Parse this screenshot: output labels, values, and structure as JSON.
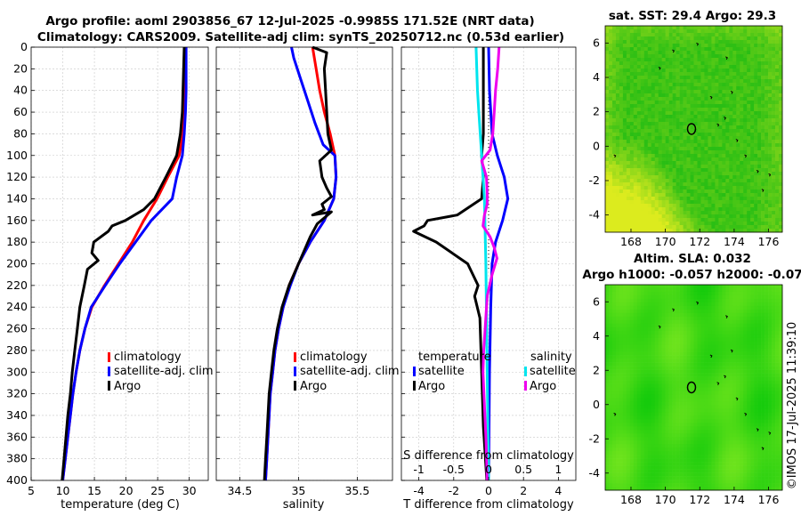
{
  "header": {
    "title1": "Argo profile: aoml 2903856_67 12-Jul-2025 -0.9985S 171.52E (NRT data)",
    "title2": "Climatology: CARS2009. Satellite-adj clim: synTS_20250712.nc (0.53d earlier)"
  },
  "colors": {
    "climatology": "#ff0000",
    "satellite": "#0000ff",
    "argo": "#000000",
    "sat_diff_s": "#00e5ee",
    "argo_diff_s": "#ee00ee",
    "map_land": "#000000"
  },
  "chart_data": [
    {
      "type": "line",
      "name": "temperature",
      "xlabel": "temperature (deg C)",
      "xlim": [
        5,
        33
      ],
      "xticks": [
        5,
        10,
        15,
        20,
        25,
        30
      ],
      "ylim": [
        0,
        400
      ],
      "yticks": [
        0,
        20,
        40,
        60,
        80,
        100,
        120,
        140,
        160,
        180,
        200,
        220,
        240,
        260,
        280,
        300,
        320,
        340,
        360,
        380,
        400
      ],
      "legend": [
        "climatology",
        "satellite-adj. clim",
        "Argo"
      ],
      "series": [
        {
          "name": "climatology",
          "color": "#ff0000",
          "points": [
            [
              29.5,
              0
            ],
            [
              29.4,
              20
            ],
            [
              29.3,
              40
            ],
            [
              29.2,
              60
            ],
            [
              29.0,
              80
            ],
            [
              28.4,
              100
            ],
            [
              26.6,
              120
            ],
            [
              24.9,
              140
            ],
            [
              22.8,
              160
            ],
            [
              21.0,
              180
            ],
            [
              18.8,
              200
            ],
            [
              16.6,
              220
            ],
            [
              14.6,
              240
            ],
            [
              13.5,
              260
            ],
            [
              12.7,
              280
            ],
            [
              12.1,
              300
            ],
            [
              11.6,
              320
            ],
            [
              11.2,
              340
            ],
            [
              10.8,
              360
            ],
            [
              10.4,
              380
            ],
            [
              10.0,
              400
            ]
          ]
        },
        {
          "name": "satellite-adj. clim",
          "color": "#0000ff",
          "points": [
            [
              29.5,
              0
            ],
            [
              29.5,
              20
            ],
            [
              29.5,
              40
            ],
            [
              29.4,
              60
            ],
            [
              29.2,
              80
            ],
            [
              28.9,
              100
            ],
            [
              28.0,
              120
            ],
            [
              27.3,
              140
            ],
            [
              24.0,
              160
            ],
            [
              21.5,
              180
            ],
            [
              19.0,
              200
            ],
            [
              16.7,
              220
            ],
            [
              14.5,
              240
            ],
            [
              13.5,
              260
            ],
            [
              12.7,
              280
            ],
            [
              12.1,
              300
            ],
            [
              11.6,
              320
            ],
            [
              11.2,
              340
            ],
            [
              10.8,
              360
            ],
            [
              10.4,
              380
            ],
            [
              10.0,
              400
            ]
          ]
        },
        {
          "name": "Argo",
          "color": "#000000",
          "points": [
            [
              29.2,
              0
            ],
            [
              29.1,
              20
            ],
            [
              29.0,
              40
            ],
            [
              28.9,
              60
            ],
            [
              28.6,
              80
            ],
            [
              28.0,
              100
            ],
            [
              26.3,
              120
            ],
            [
              24.5,
              140
            ],
            [
              22.8,
              150
            ],
            [
              19.9,
              160
            ],
            [
              17.8,
              165
            ],
            [
              17.2,
              170
            ],
            [
              14.9,
              180
            ],
            [
              14.6,
              190
            ],
            [
              15.6,
              197
            ],
            [
              13.9,
              205
            ],
            [
              13.4,
              220
            ],
            [
              12.7,
              240
            ],
            [
              12.3,
              260
            ],
            [
              11.9,
              280
            ],
            [
              11.5,
              300
            ],
            [
              11.2,
              320
            ],
            [
              10.8,
              340
            ],
            [
              10.5,
              360
            ],
            [
              10.2,
              380
            ],
            [
              9.9,
              400
            ]
          ]
        }
      ]
    },
    {
      "type": "line",
      "name": "salinity",
      "xlabel": "salinity",
      "xlim": [
        34.3,
        35.8
      ],
      "xticks": [
        34.5,
        35,
        35.5
      ],
      "ylim": [
        0,
        400
      ],
      "legend": [
        "climatology",
        "satellite-adj. clim",
        "Argo"
      ],
      "series": [
        {
          "name": "climatology",
          "color": "#ff0000",
          "points": [
            [
              35.12,
              0
            ],
            [
              35.15,
              20
            ],
            [
              35.18,
              40
            ],
            [
              35.22,
              60
            ],
            [
              35.27,
              80
            ],
            [
              35.31,
              100
            ],
            [
              35.32,
              120
            ],
            [
              35.3,
              140
            ],
            [
              35.22,
              160
            ],
            [
              35.1,
              180
            ],
            [
              35.0,
              200
            ],
            [
              34.92,
              220
            ],
            [
              34.87,
              240
            ],
            [
              34.83,
              260
            ],
            [
              34.8,
              280
            ],
            [
              34.78,
              300
            ],
            [
              34.76,
              320
            ],
            [
              34.75,
              340
            ],
            [
              34.74,
              360
            ],
            [
              34.73,
              380
            ],
            [
              34.72,
              400
            ]
          ]
        },
        {
          "name": "satellite-adj. clim",
          "color": "#0000ff",
          "points": [
            [
              34.94,
              0
            ],
            [
              34.96,
              10
            ],
            [
              35.02,
              30
            ],
            [
              35.08,
              50
            ],
            [
              35.14,
              70
            ],
            [
              35.21,
              90
            ],
            [
              35.31,
              100
            ],
            [
              35.32,
              120
            ],
            [
              35.3,
              140
            ],
            [
              35.22,
              160
            ],
            [
              35.1,
              180
            ],
            [
              35.0,
              200
            ],
            [
              34.93,
              220
            ],
            [
              34.87,
              240
            ],
            [
              34.83,
              260
            ],
            [
              34.8,
              280
            ],
            [
              34.78,
              300
            ],
            [
              34.76,
              320
            ],
            [
              34.75,
              340
            ],
            [
              34.74,
              360
            ],
            [
              34.73,
              380
            ],
            [
              34.72,
              400
            ]
          ]
        },
        {
          "name": "Argo",
          "color": "#000000",
          "points": [
            [
              35.12,
              0
            ],
            [
              35.24,
              5
            ],
            [
              35.22,
              20
            ],
            [
              35.23,
              40
            ],
            [
              35.24,
              60
            ],
            [
              35.25,
              80
            ],
            [
              35.28,
              95
            ],
            [
              35.18,
              105
            ],
            [
              35.2,
              120
            ],
            [
              35.24,
              130
            ],
            [
              35.28,
              138
            ],
            [
              35.2,
              145
            ],
            [
              35.22,
              150
            ],
            [
              35.12,
              155
            ],
            [
              35.28,
              152
            ],
            [
              35.16,
              163
            ],
            [
              35.1,
              175
            ],
            [
              35.04,
              190
            ],
            [
              34.98,
              205
            ],
            [
              34.92,
              220
            ],
            [
              34.86,
              240
            ],
            [
              34.82,
              260
            ],
            [
              34.79,
              280
            ],
            [
              34.77,
              300
            ],
            [
              34.75,
              320
            ],
            [
              34.74,
              340
            ],
            [
              34.73,
              360
            ],
            [
              34.72,
              380
            ],
            [
              34.71,
              400
            ]
          ]
        }
      ]
    },
    {
      "type": "line",
      "name": "difference",
      "xlabel": "T difference from climatology",
      "xlabel_top": "S difference from climatology",
      "xlim": [
        -5,
        5
      ],
      "xticks": [
        -4,
        -2,
        0,
        2,
        4
      ],
      "xlim_top": [
        -1.25,
        1.25
      ],
      "xticks_top": [
        -1,
        -0.5,
        0,
        0.5,
        1
      ],
      "ylim": [
        0,
        400
      ],
      "legend_headers": [
        "temperature",
        "salinity"
      ],
      "legend": [
        "satellite",
        "Argo",
        "satellite",
        "Argo"
      ],
      "series": [
        {
          "name": "T satellite",
          "axis": "T",
          "color": "#0000ff",
          "points": [
            [
              0,
              0
            ],
            [
              0.05,
              40
            ],
            [
              0.2,
              80
            ],
            [
              0.5,
              100
            ],
            [
              0.9,
              120
            ],
            [
              1.1,
              140
            ],
            [
              0.8,
              160
            ],
            [
              0.4,
              180
            ],
            [
              0.2,
              200
            ],
            [
              0.12,
              240
            ],
            [
              0.05,
              300
            ],
            [
              0,
              400
            ]
          ]
        },
        {
          "name": "T Argo",
          "axis": "T",
          "color": "#000000",
          "points": [
            [
              -0.3,
              0
            ],
            [
              -0.3,
              40
            ],
            [
              -0.3,
              80
            ],
            [
              -0.4,
              100
            ],
            [
              -0.3,
              120
            ],
            [
              -0.4,
              140
            ],
            [
              -1.8,
              155
            ],
            [
              -3.5,
              160
            ],
            [
              -3.7,
              165
            ],
            [
              -4.3,
              170
            ],
            [
              -3.0,
              180
            ],
            [
              -1.2,
              200
            ],
            [
              -0.6,
              220
            ],
            [
              -0.8,
              230
            ],
            [
              -0.5,
              250
            ],
            [
              -0.4,
              300
            ],
            [
              -0.3,
              350
            ],
            [
              -0.1,
              400
            ]
          ]
        },
        {
          "name": "S satellite",
          "axis": "S",
          "color": "#00e5ee",
          "points": [
            [
              -0.18,
              0
            ],
            [
              -0.17,
              20
            ],
            [
              -0.16,
              40
            ],
            [
              -0.14,
              60
            ],
            [
              -0.12,
              80
            ],
            [
              -0.1,
              100
            ],
            [
              -0.06,
              140
            ],
            [
              -0.04,
              200
            ],
            [
              -0.02,
              300
            ],
            [
              0,
              400
            ]
          ]
        },
        {
          "name": "S Argo",
          "axis": "S",
          "color": "#ee00ee",
          "points": [
            [
              0.15,
              0
            ],
            [
              0.13,
              20
            ],
            [
              0.1,
              40
            ],
            [
              0.08,
              60
            ],
            [
              0.06,
              80
            ],
            [
              0.02,
              95
            ],
            [
              -0.1,
              105
            ],
            [
              -0.03,
              120
            ],
            [
              -0.02,
              135
            ],
            [
              -0.02,
              145
            ],
            [
              -0.06,
              155
            ],
            [
              -0.08,
              165
            ],
            [
              0.02,
              175
            ],
            [
              0.08,
              185
            ],
            [
              0.12,
              195
            ],
            [
              0.05,
              210
            ],
            [
              -0.02,
              230
            ],
            [
              -0.05,
              260
            ],
            [
              -0.07,
              280
            ],
            [
              -0.08,
              300
            ],
            [
              -0.06,
              330
            ],
            [
              -0.04,
              360
            ],
            [
              -0.02,
              400
            ]
          ]
        }
      ]
    },
    {
      "type": "heatmap",
      "name": "sst map",
      "title": "sat. SST: 29.4 Argo: 29.3",
      "xlim": [
        166.5,
        176.8
      ],
      "xticks": [
        168,
        170,
        172,
        174,
        176
      ],
      "ylim": [
        -5,
        7
      ],
      "yticks": [
        -4,
        -2,
        0,
        2,
        4,
        6
      ],
      "marker": [
        171.52,
        -0.9985
      ]
    },
    {
      "type": "heatmap",
      "name": "sla map",
      "title": "Altim. SLA: 0.032",
      "subtitle": "Argo h1000: -0.057 h2000: -0.07",
      "xlim": [
        166.5,
        176.8
      ],
      "xticks": [
        168,
        170,
        172,
        174,
        176
      ],
      "ylim": [
        -5,
        7
      ],
      "yticks": [
        -4,
        -2,
        0,
        2,
        4,
        6
      ],
      "marker": [
        171.52,
        -0.9985
      ]
    }
  ],
  "watermark": "©IMOS 17-Jul-2025 11:39:10"
}
